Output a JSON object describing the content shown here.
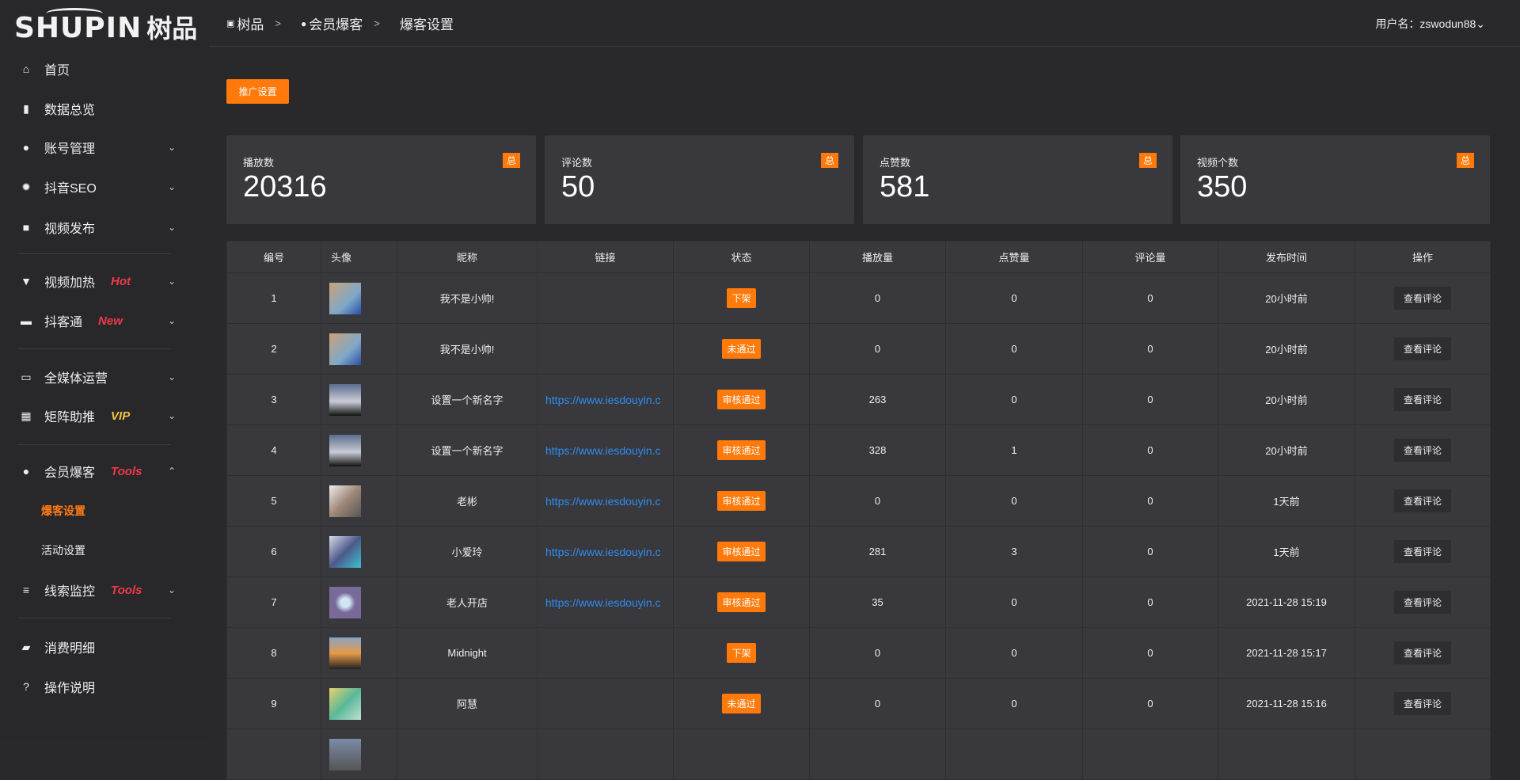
{
  "brand": {
    "en": "SHUPIN",
    "cn": "树品"
  },
  "sidebar": {
    "items": [
      {
        "label": "首页",
        "icon": "home-icon",
        "glyph": "⌂"
      },
      {
        "label": "数据总览",
        "icon": "bar-chart-icon",
        "glyph": "▮"
      },
      {
        "label": "账号管理",
        "icon": "user-icon",
        "glyph": "●",
        "chev": "⌄"
      },
      {
        "label": "抖音SEO",
        "icon": "gear-icon",
        "glyph": "✹",
        "chev": "⌄"
      },
      {
        "label": "视频发布",
        "icon": "camera-icon",
        "glyph": "■",
        "chev": "⌄"
      },
      {
        "label": "视频加热",
        "icon": "flag-icon",
        "glyph": "▼",
        "chev": "⌄",
        "tag": "Hot",
        "tag_color": "#f0384a"
      },
      {
        "label": "抖客通",
        "icon": "chat-icon",
        "glyph": "▬",
        "chev": "⌄",
        "tag": "New",
        "tag_color": "#f0384a"
      },
      {
        "label": "全媒体运营",
        "icon": "monitor-icon",
        "glyph": "▭",
        "chev": "⌄"
      },
      {
        "label": "矩阵助推",
        "icon": "grid-icon",
        "glyph": "▦",
        "chev": "⌄",
        "tag": "VIP",
        "tag_color": "#f5c342"
      },
      {
        "label": "会员爆客",
        "icon": "member-icon",
        "glyph": "●",
        "chev": "⌃",
        "tag": "Tools",
        "tag_color": "#f0384a"
      },
      {
        "label": "线索监控",
        "icon": "sliders-icon",
        "glyph": "≡",
        "chev": "⌄",
        "tag": "Tools",
        "tag_color": "#f0384a"
      },
      {
        "label": "消费明细",
        "icon": "wallet-icon",
        "glyph": "▰"
      },
      {
        "label": "操作说明",
        "icon": "help-icon",
        "glyph": "?"
      }
    ],
    "subitems": [
      {
        "label": "爆客设置",
        "active": true
      },
      {
        "label": "活动设置"
      }
    ]
  },
  "header": {
    "breadcrumb": [
      "树品",
      "会员爆客",
      "爆客设置"
    ],
    "sep": ">",
    "user": "用户名：zswodun88",
    "user_chevron": "⌄"
  },
  "promo_button": "推广设置",
  "cards": [
    {
      "label": "播放数",
      "value": "20316",
      "badge": "总"
    },
    {
      "label": "评论数",
      "value": "50",
      "badge": "总"
    },
    {
      "label": "点赞数",
      "value": "581",
      "badge": "总"
    },
    {
      "label": "视频个数",
      "value": "350",
      "badge": "总"
    }
  ],
  "table": {
    "columns": [
      "编号",
      "头像",
      "昵称",
      "链接",
      "状态",
      "播放量",
      "点赞量",
      "评论量",
      "发布时间",
      "操作"
    ],
    "action_label": "查看评论",
    "rows": [
      {
        "id": "1",
        "avatar": "linear-gradient(135deg,#c9a27a,#7fa8c8 60%,#2a4ea8)",
        "name": "我不是小帅!",
        "link": "",
        "status": "下架",
        "plays": "0",
        "likes": "0",
        "comments": "0",
        "time": "20小时前"
      },
      {
        "id": "2",
        "avatar": "linear-gradient(135deg,#c9a27a,#7fa8c8 60%,#2a4ea8)",
        "name": "我不是小帅!",
        "link": "",
        "status": "未通过",
        "plays": "0",
        "likes": "0",
        "comments": "0",
        "time": "20小时前"
      },
      {
        "id": "3",
        "avatar": "linear-gradient(180deg,#5a6c8c,#c8ccd6 55%,#111)",
        "name": "设置一个新名字",
        "link": "https://www.iesdouyin.c",
        "status": "审核通过",
        "plays": "263",
        "likes": "0",
        "comments": "0",
        "time": "20小时前"
      },
      {
        "id": "4",
        "avatar": "linear-gradient(180deg,#5a6c8c,#c8ccd6 55%,#111)",
        "name": "设置一个新名字",
        "link": "https://www.iesdouyin.c",
        "status": "审核通过",
        "plays": "328",
        "likes": "1",
        "comments": "0",
        "time": "20小时前"
      },
      {
        "id": "5",
        "avatar": "linear-gradient(135deg,#eee,#a08878 50%,#555)",
        "name": "老彬",
        "link": "https://www.iesdouyin.c",
        "status": "审核通过",
        "plays": "0",
        "likes": "0",
        "comments": "0",
        "time": "1天前"
      },
      {
        "id": "6",
        "avatar": "linear-gradient(135deg,#d8d8e8,#4c5a8a 50%,#3fc0d8)",
        "name": "小爱玲",
        "link": "https://www.iesdouyin.c",
        "status": "审核通过",
        "plays": "281",
        "likes": "3",
        "comments": "0",
        "time": "1天前"
      },
      {
        "id": "7",
        "avatar": "radial-gradient(circle,#cfe6f5 20%,#7a6a9a 45%)",
        "name": "老人开店",
        "link": "https://www.iesdouyin.c",
        "status": "审核通过",
        "plays": "35",
        "likes": "0",
        "comments": "0",
        "time": "2021-11-28 15:19"
      },
      {
        "id": "8",
        "avatar": "linear-gradient(180deg,#8aa4c4,#e59a48 50%,#222)",
        "name": "Midnight",
        "link": "",
        "status": "下架",
        "plays": "0",
        "likes": "0",
        "comments": "0",
        "time": "2021-11-28 15:17"
      },
      {
        "id": "9",
        "avatar": "linear-gradient(135deg,#e6d26a,#5ab89a 50%,#bfe0d0)",
        "name": "阿慧",
        "link": "",
        "status": "未通过",
        "plays": "0",
        "likes": "0",
        "comments": "0",
        "time": "2021-11-28 15:16"
      },
      {
        "id": "",
        "avatar": "linear-gradient(180deg,#7a8ca8,#555)",
        "name": "",
        "link": "",
        "status": "",
        "plays": "",
        "likes": "",
        "comments": "",
        "time": ""
      }
    ]
  },
  "colors": {
    "accent": "#ff7a0a",
    "link": "#2d8cf0",
    "tag_red": "#f0384a",
    "tag_vip": "#f5c342"
  }
}
